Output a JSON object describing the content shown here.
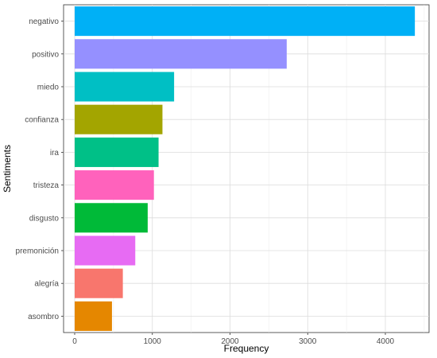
{
  "chart_data": {
    "type": "bar",
    "orientation": "horizontal",
    "xlabel": "Frequency",
    "ylabel": "Sentiments",
    "xlim": [
      0,
      4400
    ],
    "x_ticks": [
      0,
      1000,
      2000,
      3000,
      4000
    ],
    "grid": true,
    "categories": [
      "negativo",
      "positivo",
      "miedo",
      "confianza",
      "ira",
      "tristeza",
      "disgusto",
      "premonición",
      "alegría",
      "asombro"
    ],
    "values": [
      4380,
      2730,
      1280,
      1130,
      1080,
      1020,
      940,
      780,
      620,
      480
    ],
    "colors": [
      "#00B0F6",
      "#9590FF",
      "#00BFC4",
      "#A3A500",
      "#00C087",
      "#FF62BC",
      "#00BA38",
      "#E76BF3",
      "#F8766D",
      "#E58700"
    ]
  }
}
